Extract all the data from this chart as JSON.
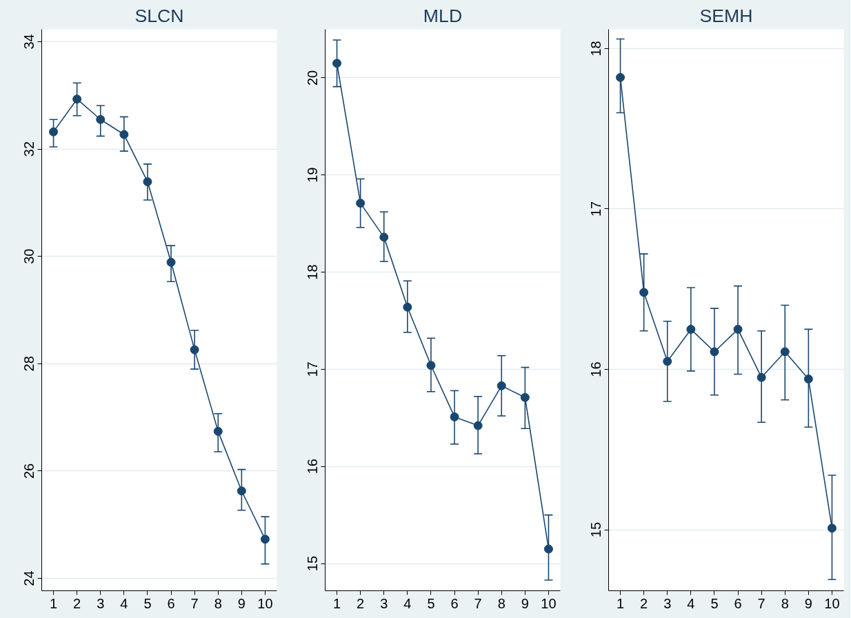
{
  "chart_data": [
    {
      "type": "line",
      "title": "SLCN",
      "x": [
        1,
        2,
        3,
        4,
        5,
        6,
        7,
        8,
        9,
        10
      ],
      "xlim": [
        0.5,
        10.5
      ],
      "xticks": [
        1,
        2,
        3,
        4,
        5,
        6,
        7,
        8,
        9,
        10
      ],
      "ylim": [
        23.77,
        34.23
      ],
      "yticks": [
        24,
        26,
        28,
        30,
        32,
        34
      ],
      "grid": "y",
      "marker": "circle",
      "line_style": "solid",
      "series": [
        {
          "color": "#1a476f",
          "values": [
            32.32,
            32.93,
            32.55,
            32.27,
            31.39,
            29.89,
            28.26,
            26.74,
            25.63,
            24.73
          ],
          "errors": [
            [
              32.04,
              32.55
            ],
            [
              32.62,
              33.23
            ],
            [
              32.24,
              32.81
            ],
            [
              31.96,
              32.6
            ],
            [
              31.05,
              31.72
            ],
            [
              29.53,
              30.2
            ],
            [
              27.9,
              28.62
            ],
            [
              26.36,
              27.07
            ],
            [
              25.27,
              26.03
            ],
            [
              24.27,
              25.15
            ]
          ]
        }
      ]
    },
    {
      "type": "line",
      "title": "MLD",
      "x": [
        1,
        2,
        3,
        4,
        5,
        6,
        7,
        8,
        9,
        10
      ],
      "xlim": [
        0.5,
        10.5
      ],
      "xticks": [
        1,
        2,
        3,
        4,
        5,
        6,
        7,
        8,
        9,
        10
      ],
      "ylim": [
        14.72,
        20.5
      ],
      "yticks": [
        15,
        16,
        17,
        18,
        19,
        20
      ],
      "grid": "y",
      "marker": "circle",
      "line_style": "solid",
      "series": [
        {
          "color": "#1a476f",
          "values": [
            20.15,
            18.71,
            18.36,
            17.64,
            17.04,
            16.51,
            16.42,
            16.83,
            16.71,
            15.15
          ],
          "errors": [
            [
              19.91,
              20.39
            ],
            [
              18.46,
              18.96
            ],
            [
              18.11,
              18.62
            ],
            [
              17.38,
              17.91
            ],
            [
              16.77,
              17.32
            ],
            [
              16.23,
              16.78
            ],
            [
              16.13,
              16.72
            ],
            [
              16.52,
              17.14
            ],
            [
              16.39,
              17.02
            ],
            [
              14.83,
              15.5
            ]
          ]
        }
      ]
    },
    {
      "type": "line",
      "title": "SEMH",
      "x": [
        1,
        2,
        3,
        4,
        5,
        6,
        7,
        8,
        9,
        10
      ],
      "xlim": [
        0.5,
        10.5
      ],
      "xticks": [
        1,
        2,
        3,
        4,
        5,
        6,
        7,
        8,
        9,
        10
      ],
      "ylim": [
        14.62,
        18.12
      ],
      "yticks": [
        15,
        16,
        17,
        18
      ],
      "grid": "y",
      "marker": "circle",
      "line_style": "solid",
      "series": [
        {
          "color": "#1a476f",
          "values": [
            17.82,
            16.48,
            16.05,
            16.25,
            16.11,
            16.25,
            15.95,
            16.11,
            15.94,
            15.01
          ],
          "errors": [
            [
              17.6,
              18.06
            ],
            [
              16.24,
              16.72
            ],
            [
              15.8,
              16.3
            ],
            [
              15.99,
              16.51
            ],
            [
              15.84,
              16.38
            ],
            [
              15.97,
              16.52
            ],
            [
              15.67,
              16.24
            ],
            [
              15.81,
              16.4
            ],
            [
              15.64,
              16.25
            ],
            [
              14.69,
              15.34
            ]
          ]
        }
      ]
    }
  ]
}
